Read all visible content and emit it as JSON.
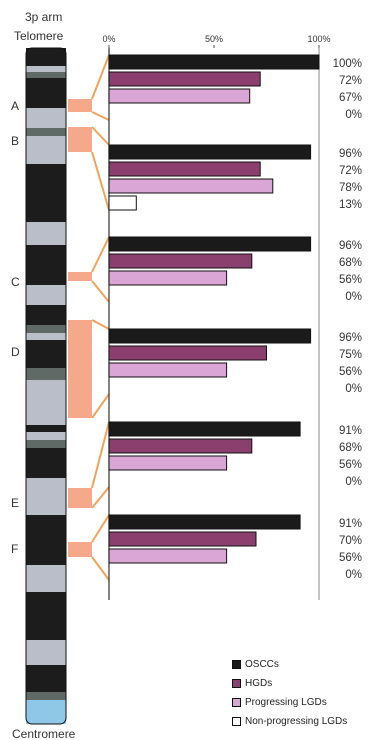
{
  "labels": {
    "arm": "3p arm",
    "top": "Telomere",
    "bottom": "Centromere"
  },
  "colors": {
    "orange_connector": "#f2a35a",
    "orange_fill": "#f6a98a",
    "band_dark": "#1c1c1c",
    "band_light": "#b9bec8",
    "band_mid": "#5f6a66",
    "centromere": "#8fc7e8"
  },
  "chart_data": {
    "type": "bar",
    "orientation": "horizontal",
    "xlim": [
      0,
      100
    ],
    "ticks": [
      "0%",
      "50%",
      "100%"
    ],
    "categories": [
      "A",
      "B",
      "C",
      "D",
      "E",
      "F"
    ],
    "series": [
      {
        "name": "OSCCs",
        "color": "#1a1a1a",
        "values": [
          100,
          96,
          96,
          96,
          91,
          91
        ]
      },
      {
        "name": "HGDs",
        "color": "#8a3f6e",
        "values": [
          72,
          72,
          68,
          75,
          68,
          70
        ]
      },
      {
        "name": "Progressing LGDs",
        "color": "#d9a6d6",
        "values": [
          67,
          78,
          56,
          56,
          56,
          56
        ]
      },
      {
        "name": "Non-progressing LGDs",
        "color": "#ffffff",
        "values": [
          0,
          13,
          0,
          0,
          0,
          0
        ]
      }
    ],
    "value_labels": [
      [
        "100%",
        "72%",
        "67%",
        "0%"
      ],
      [
        "96%",
        "72%",
        "78%",
        "13%"
      ],
      [
        "96%",
        "68%",
        "56%",
        "0%"
      ],
      [
        "96%",
        "75%",
        "56%",
        "0%"
      ],
      [
        "91%",
        "68%",
        "56%",
        "0%"
      ],
      [
        "91%",
        "70%",
        "56%",
        "0%"
      ]
    ],
    "legend_position": "bottom-right"
  }
}
